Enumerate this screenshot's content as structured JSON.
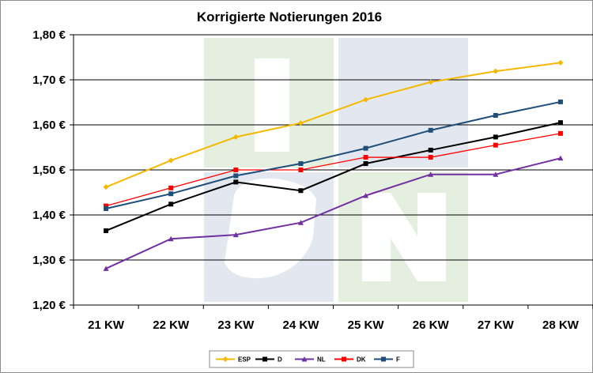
{
  "chart_data": {
    "type": "line",
    "title": "Korrigierte Notierungen 2016",
    "xlabel": "",
    "ylabel": "",
    "categories": [
      "21 KW",
      "22 KW",
      "23 KW",
      "24 KW",
      "25 KW",
      "26 KW",
      "27 KW",
      "28 KW"
    ],
    "y_ticks": [
      "1,20 €",
      "1,30 €",
      "1,40 €",
      "1,50 €",
      "1,60 €",
      "1,70 €",
      "1,80 €"
    ],
    "ylim": [
      1.2,
      1.8
    ],
    "grid": true,
    "legend_position": "bottom",
    "series": [
      {
        "name": "ESP",
        "color": "#f5b800",
        "marker": "diamond",
        "values": [
          1.462,
          1.521,
          1.573,
          1.604,
          1.656,
          1.695,
          1.719,
          1.738
        ]
      },
      {
        "name": "D",
        "color": "#000000",
        "marker": "square",
        "values": [
          1.365,
          1.424,
          1.473,
          1.454,
          1.514,
          1.544,
          1.573,
          1.605
        ]
      },
      {
        "name": "NL",
        "color": "#7030a0",
        "marker": "triangle",
        "values": [
          1.281,
          1.347,
          1.356,
          1.383,
          1.443,
          1.49,
          1.49,
          1.526
        ]
      },
      {
        "name": "DK",
        "color": "#ff0000",
        "marker": "square",
        "values": [
          1.42,
          1.46,
          1.5,
          1.5,
          1.528,
          1.528,
          1.555,
          1.581
        ]
      },
      {
        "name": "F",
        "color": "#1f4e79",
        "marker": "square",
        "values": [
          1.414,
          1.447,
          1.487,
          1.514,
          1.548,
          1.588,
          1.621,
          1.651
        ]
      }
    ]
  }
}
